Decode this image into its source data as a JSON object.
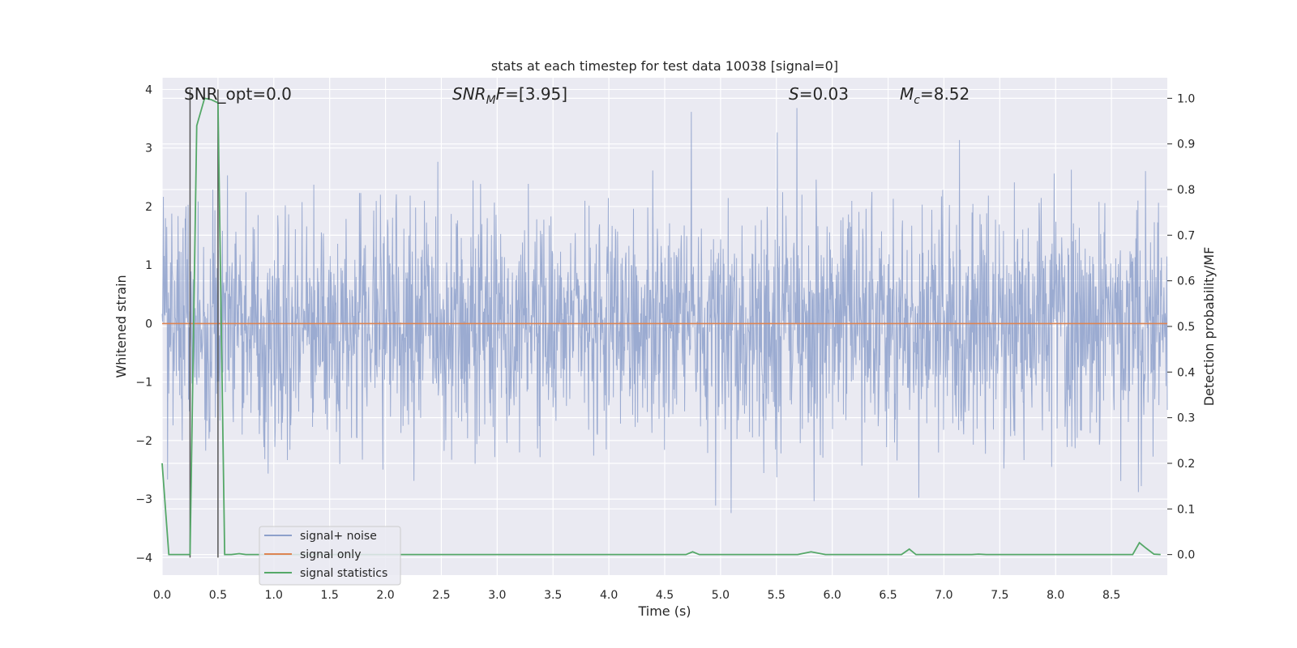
{
  "chart_data": {
    "type": "line",
    "title": "stats at each timestep for test data 10038 [signal=0]",
    "xlabel": "Time (s)",
    "ylabel": "Whitened strain",
    "y2label": "Detection probability/MF",
    "xlim": [
      0.0,
      9.0
    ],
    "ylim": [
      -4.3,
      4.2
    ],
    "y2lim": [
      -0.045,
      1.045
    ],
    "xticks": [
      0.0,
      0.5,
      1.0,
      1.5,
      2.0,
      2.5,
      3.0,
      3.5,
      4.0,
      4.5,
      5.0,
      5.5,
      6.0,
      6.5,
      7.0,
      7.5,
      8.0,
      8.5
    ],
    "xtick_labels": [
      "0.0",
      "0.5",
      "1.0",
      "1.5",
      "2.0",
      "2.5",
      "3.0",
      "3.5",
      "4.0",
      "4.5",
      "5.0",
      "5.5",
      "6.0",
      "6.5",
      "7.0",
      "7.5",
      "8.0",
      "8.5"
    ],
    "yticks": [
      -4,
      -3,
      -2,
      -1,
      0,
      1,
      2,
      3,
      4
    ],
    "ytick_labels": [
      "−4",
      "−3",
      "−2",
      "−1",
      "0",
      "1",
      "2",
      "3",
      "4"
    ],
    "y2ticks": [
      0.0,
      0.1,
      0.2,
      0.3,
      0.4,
      0.5,
      0.6,
      0.7,
      0.8,
      0.9,
      1.0
    ],
    "y2tick_labels": [
      "0.0",
      "0.1",
      "0.2",
      "0.3",
      "0.4",
      "0.5",
      "0.6",
      "0.7",
      "0.8",
      "0.9",
      "1.0"
    ],
    "grid": true,
    "legend_position": "lower-left",
    "legend": [
      "signal+ noise",
      "signal only",
      "signal statistics"
    ],
    "colors": {
      "noise": "#8da0cb",
      "signal_only": "#dd8452",
      "statistics": "#55a868",
      "vline": "#555555",
      "background": "#eaeaf2",
      "grid": "#ffffff"
    },
    "annotations": {
      "snr_opt": "SNR_opt=0.0",
      "snr_mf_sym": "SNR",
      "snr_mf_sub": "M",
      "snr_mf_rest": "F",
      "snr_mf_value": "=[3.95]",
      "s_sym": "S",
      "s_value": "=0.03",
      "mc_sym": "M",
      "mc_sub": "c",
      "mc_value": "=8.52"
    },
    "series": [
      {
        "name": "signal+ noise",
        "description": "whitened strain noise, approx. Gaussian with unit std",
        "noise_envelope": [
          -3.9,
          3.85
        ]
      },
      {
        "name": "signal only",
        "x": [
          0.0,
          9.0
        ],
        "y": [
          0.0,
          0.0
        ]
      },
      {
        "name": "signal statistics",
        "axis": "right",
        "x": [
          0.0,
          0.06,
          0.12,
          0.19,
          0.25,
          0.31,
          0.38,
          0.44,
          0.5,
          0.56,
          0.62,
          0.69,
          0.75,
          0.81,
          4.69,
          4.75,
          4.81,
          5.69,
          5.81,
          5.94,
          6.62,
          6.69,
          6.75,
          7.25,
          7.31,
          7.38,
          8.62,
          8.69,
          8.75,
          8.81,
          8.88,
          8.94
        ],
        "y": [
          0.2,
          0.0,
          0.0,
          0.0,
          0.0,
          0.94,
          1.0,
          0.997,
          0.99,
          0.0,
          0.0,
          0.002,
          0.0,
          0.0,
          0.0,
          0.006,
          0.0,
          0.0,
          0.006,
          0.0,
          0.0,
          0.012,
          0.0,
          0.0,
          0.001,
          0.0,
          0.0,
          0.0,
          0.026,
          0.014,
          0.001,
          0.0
        ]
      }
    ],
    "vlines": [
      0.25,
      0.5
    ]
  }
}
